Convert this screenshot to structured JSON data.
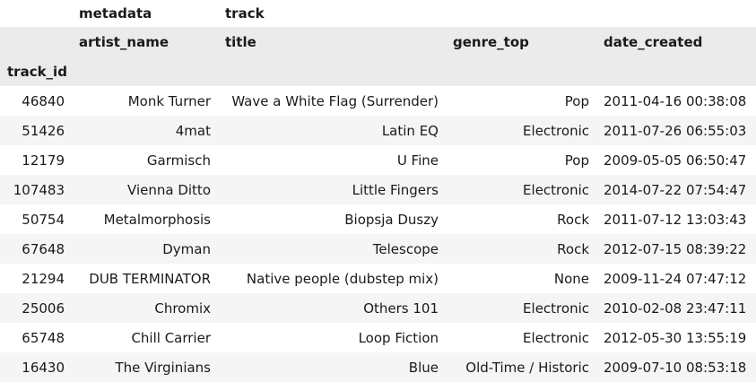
{
  "header": {
    "group_metadata": "metadata",
    "group_track": "track",
    "col_artist_name": "artist_name",
    "col_title": "title",
    "col_genre_top": "genre_top",
    "col_date_created": "date_created",
    "index_name": "track_id"
  },
  "rows": [
    {
      "track_id": "46840",
      "artist_name": "Monk Turner",
      "title": "Wave a White Flag (Surrender)",
      "genre_top": "Pop",
      "date_created": "2011-04-16 00:38:08"
    },
    {
      "track_id": "51426",
      "artist_name": "4mat",
      "title": "Latin EQ",
      "genre_top": "Electronic",
      "date_created": "2011-07-26 06:55:03"
    },
    {
      "track_id": "12179",
      "artist_name": "Garmisch",
      "title": "U Fine",
      "genre_top": "Pop",
      "date_created": "2009-05-05 06:50:47"
    },
    {
      "track_id": "107483",
      "artist_name": "Vienna Ditto",
      "title": "Little Fingers",
      "genre_top": "Electronic",
      "date_created": "2014-07-22 07:54:47"
    },
    {
      "track_id": "50754",
      "artist_name": "Metalmorphosis",
      "title": "Biopsja Duszy",
      "genre_top": "Rock",
      "date_created": "2011-07-12 13:03:43"
    },
    {
      "track_id": "67648",
      "artist_name": "Dyman",
      "title": "Telescope",
      "genre_top": "Rock",
      "date_created": "2012-07-15 08:39:22"
    },
    {
      "track_id": "21294",
      "artist_name": "DUB TERMINATOR",
      "title": "Native people (dubstep mix)",
      "genre_top": "None",
      "date_created": "2009-11-24 07:47:12"
    },
    {
      "track_id": "25006",
      "artist_name": "Chromix",
      "title": "Others 101",
      "genre_top": "Electronic",
      "date_created": "2010-02-08 23:47:11"
    },
    {
      "track_id": "65748",
      "artist_name": "Chill Carrier",
      "title": "Loop Fiction",
      "genre_top": "Electronic",
      "date_created": "2012-05-30 13:55:19"
    },
    {
      "track_id": "16430",
      "artist_name": "The Virginians",
      "title": "Blue",
      "genre_top": "Old-Time / Historic",
      "date_created": "2009-07-10 08:53:18"
    }
  ]
}
